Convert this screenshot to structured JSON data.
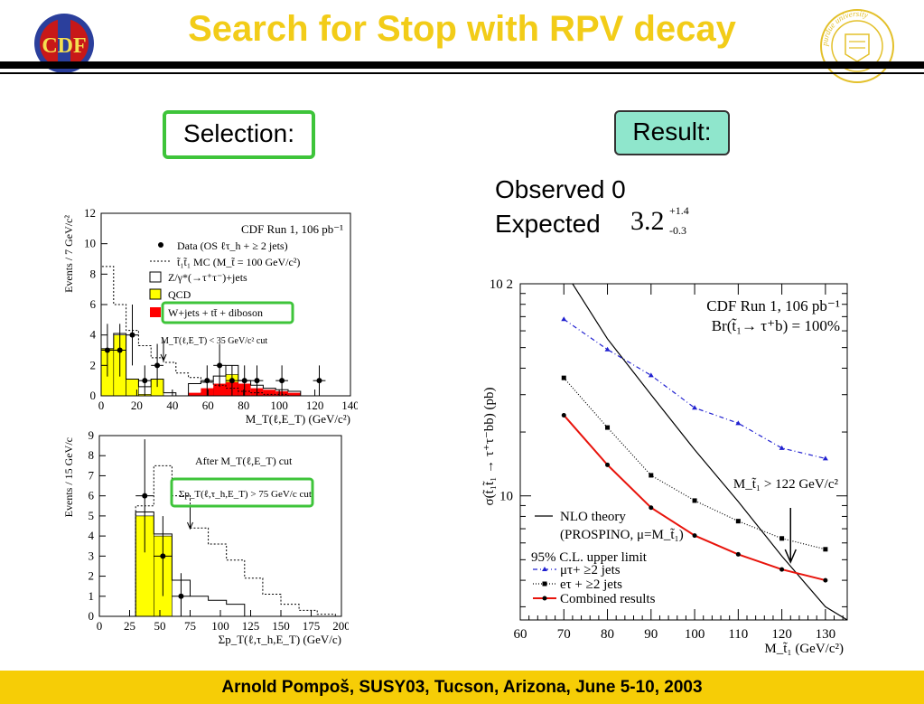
{
  "header": {
    "title": "Search for Stop with RPV decay",
    "logo_left_text": "CDF",
    "logo_right_text": "purdue university"
  },
  "selection_label": "Selection:",
  "result_label": "Result:",
  "observed_text": "Observed 0",
  "expected_text": "Expected",
  "expected_value": "3.2",
  "expected_up": "+1.4",
  "expected_down": "-0.3",
  "footer": "Arnold Pompoš, SUSY03, Tucson, Arizona, June 5-10, 2003",
  "colors": {
    "title": "#f2cc18",
    "footer_bg": "#f6cd06",
    "green_box": "#3ec43a",
    "result_bg": "#8fe6cc",
    "qcd": "#ffff00",
    "wjets": "#ff0000",
    "combined": "#e8140c",
    "mutau": "#2020d0"
  },
  "chart_data": [
    {
      "type": "bar",
      "ylabel": "Events / 7 GeV/c²",
      "xlabel": "M_T(ℓ,E_T) (GeV/c²)",
      "xlim": [
        0,
        140
      ],
      "ylim": [
        0,
        12
      ],
      "xticks": [
        "0",
        "20",
        "40",
        "60",
        "80",
        "100",
        "120",
        "140"
      ],
      "yticks": [
        "0",
        "2",
        "4",
        "6",
        "8",
        "10",
        "12"
      ],
      "legend": [
        "CDF Run 1, 106 pb⁻¹",
        "Data (OS ℓτ_h + ≥ 2 jets)",
        "t̃₁t̃₁ MC (M_t̃ = 100 GeV/c²)",
        "Z/γ*(→τ⁺τ⁻)+jets",
        "QCD",
        "W+jets + tt̄ + diboson"
      ],
      "annotation": "M_T(ℓ,E_T) < 35 GeV/c² cut",
      "bin_edges": [
        0,
        7,
        14,
        21,
        28,
        35,
        42,
        49,
        56,
        63,
        70,
        77,
        84,
        91,
        98,
        105,
        112,
        119,
        126,
        133,
        140
      ],
      "data": [
        3,
        3,
        4,
        1,
        2,
        0,
        0,
        0,
        1,
        2,
        1,
        1,
        1,
        0,
        1,
        0,
        0,
        1,
        0,
        0
      ],
      "qcd": [
        3.1,
        4.0,
        1.1,
        0.1,
        1.1,
        0,
        0,
        0,
        0.2,
        0.5,
        1.4,
        0,
        0,
        0,
        0,
        0,
        0,
        0,
        0,
        0
      ],
      "wjets": [
        0,
        0,
        0,
        0,
        0,
        0,
        0,
        0.2,
        0.5,
        0.8,
        0.9,
        0.8,
        0.5,
        0.4,
        0.3,
        0.2,
        0,
        0,
        0,
        0
      ],
      "total_sm": [
        3.1,
        4.1,
        1.1,
        0.6,
        1.1,
        0.2,
        0,
        0.8,
        0.9,
        1.3,
        2.0,
        1.0,
        0.7,
        0.5,
        0.4,
        0.3,
        0,
        0,
        0,
        0
      ],
      "signal": [
        8.5,
        6.0,
        4.3,
        3.3,
        2.5,
        2.2,
        1.5,
        1.2,
        0.9,
        0.7,
        0.5,
        0.3,
        0.2,
        0.1,
        0.1,
        0,
        0,
        0,
        0,
        0
      ]
    },
    {
      "type": "bar",
      "ylabel": "Events / 15 GeV/c",
      "xlabel": "Σp_T(ℓ,τ_h,E_T) (GeV/c)",
      "xlim": [
        0,
        200
      ],
      "ylim": [
        0,
        9
      ],
      "xticks": [
        "0",
        "25",
        "50",
        "75",
        "100",
        "125",
        "150",
        "175",
        "200"
      ],
      "yticks": [
        "0",
        "1",
        "2",
        "3",
        "4",
        "5",
        "6",
        "7",
        "8",
        "9"
      ],
      "legend": [
        "After M_T(ℓ,E_T) cut"
      ],
      "annotation": "Σp_T(ℓ,τ_h,E_T) > 75 GeV/c cut",
      "bin_edges": [
        0,
        15,
        30,
        45,
        60,
        75,
        90,
        105,
        120,
        135,
        150,
        165,
        180,
        195
      ],
      "data": [
        0,
        0,
        6,
        3,
        1,
        0,
        0,
        0,
        0,
        0,
        0,
        0,
        0
      ],
      "qcd": [
        0,
        0,
        5.0,
        4.0,
        0,
        0,
        0,
        0,
        0,
        0,
        0,
        0,
        0
      ],
      "total_sm": [
        0,
        0,
        5.2,
        4.1,
        1.8,
        1.0,
        0.8,
        0.6,
        0,
        0,
        0,
        0,
        0
      ],
      "signal": [
        0,
        0,
        5.5,
        7.5,
        6.0,
        4.4,
        3.6,
        2.8,
        1.9,
        1.1,
        0.6,
        0.3,
        0.1
      ]
    },
    {
      "type": "line",
      "title": "CDF Run 1, 106 pb⁻¹",
      "subtitle": "Br(t̃₁→ τ⁺b) = 100%",
      "ylabel": "σ(t̃₁t̃₁ → τ⁺τ⁻bb) (pb)",
      "xlabel": "M_t̃₁ (GeV/c²)",
      "xlim": [
        60,
        135
      ],
      "ylim": [
        2.6,
        100
      ],
      "yscale": "log",
      "xticks": [
        "60",
        "70",
        "80",
        "90",
        "100",
        "110",
        "120",
        "130"
      ],
      "yticks": [
        "10",
        "10 2"
      ],
      "annotation": "M_t̃₁ > 122 GeV/c²",
      "legend_header": "95% C.L. upper limit",
      "series": [
        {
          "name": "NLO theory (PROSPINO, μ=M_t̃₁)",
          "x": [
            72,
            80,
            90,
            100,
            110,
            120,
            130,
            135
          ],
          "y": [
            100,
            55,
            30,
            16.5,
            9.4,
            5.2,
            3.0,
            2.6
          ]
        },
        {
          "name": "μτ+ ≥2 jets",
          "x": [
            70,
            80,
            90,
            100,
            110,
            120,
            130
          ],
          "y": [
            68,
            49,
            37,
            26,
            22,
            16.8,
            15
          ]
        },
        {
          "name": "eτ + ≥2 jets",
          "x": [
            70,
            80,
            90,
            100,
            110,
            120,
            130
          ],
          "y": [
            36,
            21,
            12.5,
            9.5,
            7.6,
            6.3,
            5.6
          ]
        },
        {
          "name": "Combined results",
          "x": [
            70,
            80,
            90,
            100,
            110,
            120,
            130
          ],
          "y": [
            24,
            14,
            8.8,
            6.5,
            5.3,
            4.5,
            4.0
          ]
        }
      ]
    }
  ]
}
